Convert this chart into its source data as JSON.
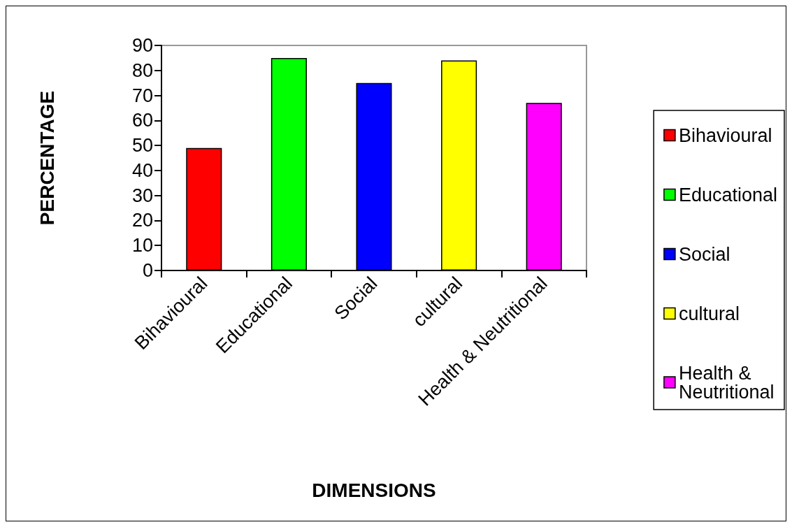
{
  "chart_data": {
    "type": "bar",
    "xlabel": "DIMENSIONS",
    "ylabel": "PERCENTAGE",
    "categories": [
      "Bihavioural",
      "Educational",
      "Social",
      "cultural",
      "Health & Neutritional"
    ],
    "series": [
      {
        "name": "Bihavioural",
        "color": "#ff0000",
        "values": [
          49,
          null,
          null,
          null,
          null
        ]
      },
      {
        "name": "Educational",
        "color": "#00ff00",
        "values": [
          null,
          85,
          null,
          null,
          null
        ]
      },
      {
        "name": "Social",
        "color": "#0000ff",
        "values": [
          null,
          null,
          75,
          null,
          null
        ]
      },
      {
        "name": "cultural",
        "color": "#ffff00",
        "values": [
          null,
          null,
          null,
          84,
          null
        ]
      },
      {
        "name": "Health & Neutritional",
        "color": "#ff00ff",
        "values": [
          null,
          null,
          null,
          null,
          67
        ]
      }
    ],
    "stacked": true,
    "ylim": [
      0,
      90
    ],
    "yticks": [
      0,
      10,
      20,
      30,
      40,
      50,
      60,
      70,
      80,
      90
    ],
    "legend": "right"
  }
}
